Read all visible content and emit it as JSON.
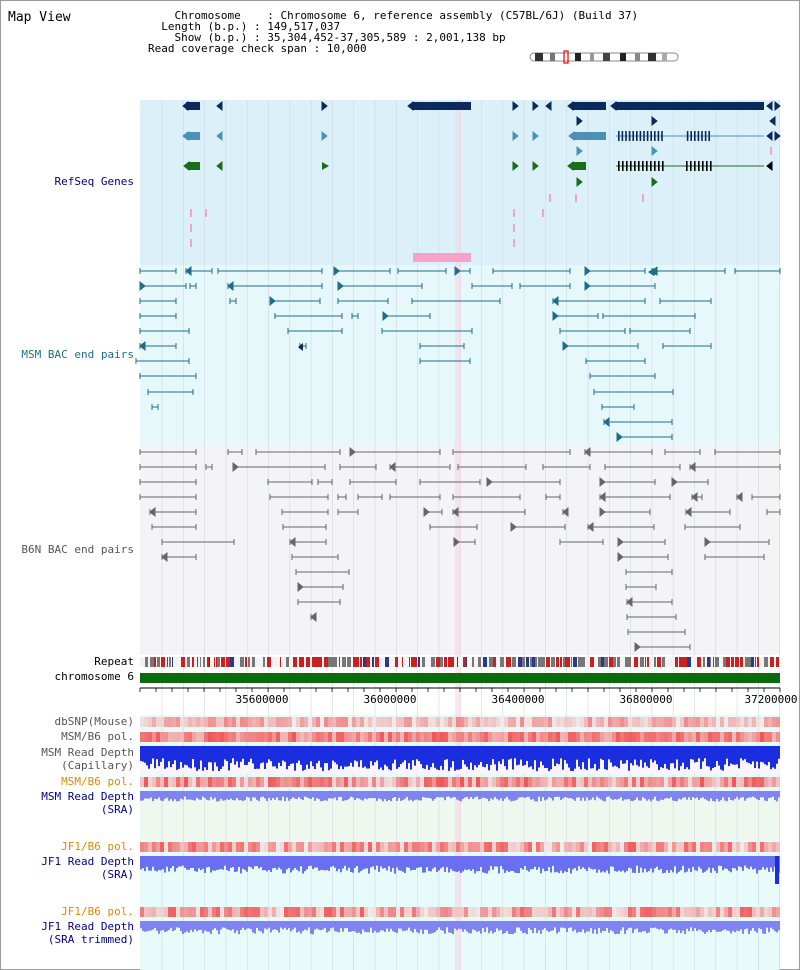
{
  "view": {
    "title": "Map View",
    "chromosome_key": "Chromosome",
    "chromosome_value": "Chromosome 6, reference assembly (C57BL/6J) (Build 37)",
    "length_key": "Length (b.p.)",
    "length_value": "149,517,037",
    "show_key": "Show (b.p.)",
    "show_value": "35,304,452-37,305,589 : 2,001,138 bp",
    "coverage_key": "Read coverage check span",
    "coverage_value": "10,000"
  },
  "tracks": {
    "refseq": "RefSeq Genes",
    "msm_bac": "MSM BAC end pairs",
    "b6n_bac": "B6N BAC end pairs",
    "repeat": "Repeat",
    "chrom": "chromosome 6",
    "dbsnp": "dbSNP(Mouse)",
    "msm_b6_pol": "MSM/B6 pol.",
    "msm_depth_cap_1": "MSM Read Depth",
    "msm_depth_cap_2": "(Capillary)",
    "msm_b6_pol2": "MSM/B6 pol.",
    "msm_depth_sra_1": "MSM Read Depth",
    "msm_depth_sra_2": "(SRA)",
    "jf1_pol": "JF1/B6 pol.",
    "jf1_depth_1": "JF1 Read Depth",
    "jf1_depth_2": "(SRA)",
    "jf1_pol2": "JF1/B6 pol.",
    "jf1_trim_1": "JF1 Read Depth",
    "jf1_trim_2": "(SRA trimmed)"
  },
  "axis": {
    "ticks": [
      "35600000",
      "36000000",
      "36400000",
      "36800000",
      "37200000"
    ]
  },
  "colors": {
    "refseq_bg": "#dcf0fa",
    "msm_bg": "#e6f8fa",
    "b6n_bg": "#f4f4f6",
    "gene_dark": "#0b2a5c",
    "gene_teal": "#4c90b8",
    "gene_green": "#1a6e1a",
    "bac_teal": "#1f6c8c",
    "bac_gray": "#666666",
    "chrom_green": "#0b6a0b",
    "highlight_pink": "#f5a3c7"
  }
}
